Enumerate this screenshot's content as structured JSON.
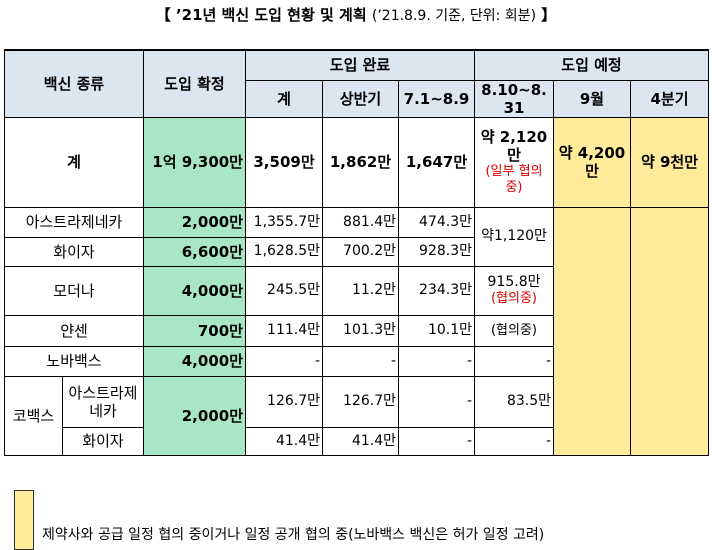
{
  "title": {
    "main": "【 ’21년 백신 도입 현황 및 계획",
    "note": "(’21.8.9. 기준, 단위: 회분)",
    "end": "】"
  },
  "table": {
    "header": {
      "type": "백신 종류",
      "confirmed": "도입 확정",
      "completed": "도입 완료",
      "planned": "도입 예정",
      "total": "계",
      "first_half": "상반기",
      "jul_aug": "7.1~8.9",
      "aug_late": "8.10~8.31",
      "september": "9월",
      "q4": "4분기"
    },
    "rows": [
      {
        "name": "계",
        "confirmed": "1억 9,300만",
        "total": "3,509만",
        "first_half": "1,862만",
        "jul_aug": "1,647만",
        "aug_late": "약 2,120만",
        "aug_late_note": "(일부 협의 중)",
        "september": "약 4,200만",
        "q4": "약 9천만"
      },
      {
        "name": "아스트라제네카",
        "confirmed": "2,000만",
        "total": "1,355.7만",
        "first_half": "881.4만",
        "jul_aug": "474.3만",
        "aug_late": "약1,120만"
      },
      {
        "name": "화이자",
        "confirmed": "6,600만",
        "total": "1,628.5만",
        "first_half": "700.2만",
        "jul_aug": "928.3만"
      },
      {
        "name": "모더나",
        "confirmed": "4,000만",
        "total": "245.5만",
        "first_half": "11.2만",
        "jul_aug": "234.3만",
        "aug_late": "915.8만",
        "aug_late_note": "(협의중)"
      },
      {
        "name": "얀센",
        "confirmed": "700만",
        "total": "111.4만",
        "first_half": "101.3만",
        "jul_aug": "10.1만",
        "aug_late": "(협의중)"
      },
      {
        "name": "노바백스",
        "confirmed": "4,000만",
        "total": "-",
        "first_half": "-",
        "jul_aug": "-",
        "aug_late": "-"
      },
      {
        "group": "코백스",
        "name": "아스트라제네카",
        "confirmed": "2,000만",
        "total": "126.7만",
        "first_half": "126.7만",
        "jul_aug": "-",
        "aug_late": "83.5만"
      },
      {
        "name": "화이자",
        "total": "41.4만",
        "first_half": "41.4만",
        "jul_aug": "-",
        "aug_late": "-"
      }
    ]
  },
  "legend": "제약사와 공급 일정 협의 중이거나 일정 공개 협의 중(노바백스 백신은 허가 일정 고려)"
}
